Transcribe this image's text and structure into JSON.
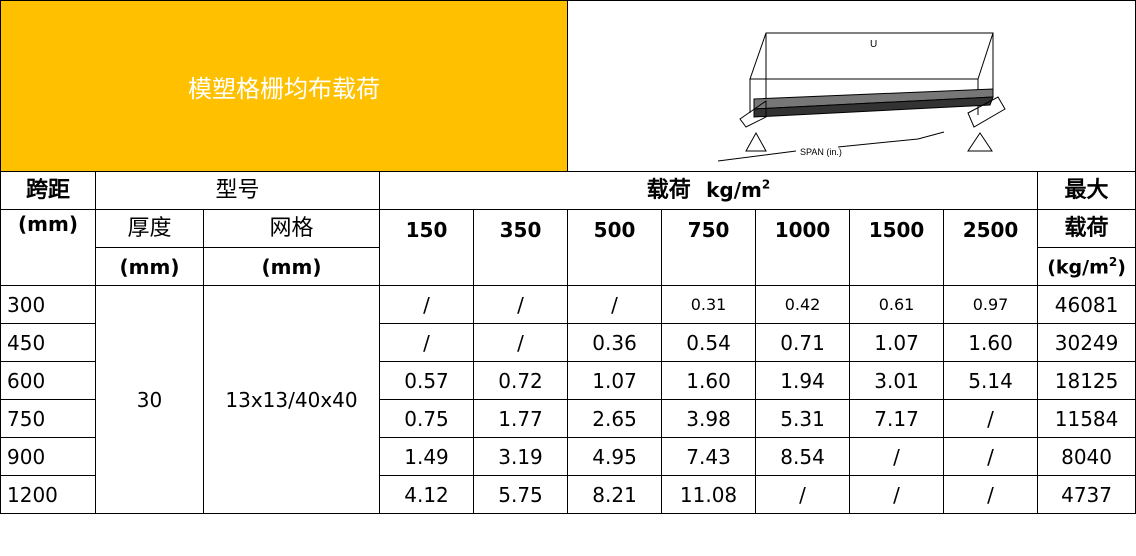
{
  "title": "模塑格栅均布载荷",
  "diagram": {
    "label_u": "U",
    "label_span": "SPAN (in.)"
  },
  "headers": {
    "span": "跨距",
    "span_unit": "(mm)",
    "model": "型号",
    "load": "载荷",
    "load_unit": "kg/m",
    "load_unit_sup": "2",
    "max_line1": "最大",
    "max_line2": "载荷",
    "max_unit": "(kg/m",
    "max_unit_sup": "2",
    "max_unit_close": ")",
    "thickness": "厚度",
    "thickness_unit": "(mm)",
    "mesh": "网格",
    "mesh_unit": "(mm)",
    "loads": [
      "150",
      "350",
      "500",
      "750",
      "1000",
      "1500",
      "2500"
    ]
  },
  "model": {
    "thickness": "30",
    "mesh": "13x13/40x40"
  },
  "rows": [
    {
      "span": "300",
      "values": [
        "/",
        "/",
        "/",
        "0.31",
        "0.42",
        "0.61",
        "0.97"
      ],
      "max": "46081"
    },
    {
      "span": "450",
      "values": [
        "/",
        "/",
        "0.36",
        "0.54",
        "0.71",
        "1.07",
        "1.60"
      ],
      "max": "30249"
    },
    {
      "span": "600",
      "values": [
        "0.57",
        "0.72",
        "1.07",
        "1.60",
        "1.94",
        "3.01",
        "5.14"
      ],
      "max": "18125"
    },
    {
      "span": "750",
      "values": [
        "0.75",
        "1.77",
        "2.65",
        "3.98",
        "5.31",
        "7.17",
        "/"
      ],
      "max": "11584"
    },
    {
      "span": "900",
      "values": [
        "1.49",
        "3.19",
        "4.95",
        "7.43",
        "8.54",
        "/",
        "/"
      ],
      "max": "8040"
    },
    {
      "span": "1200",
      "values": [
        "4.12",
        "5.75",
        "8.21",
        "11.08",
        "/",
        "/",
        "/"
      ],
      "max": "4737"
    }
  ]
}
